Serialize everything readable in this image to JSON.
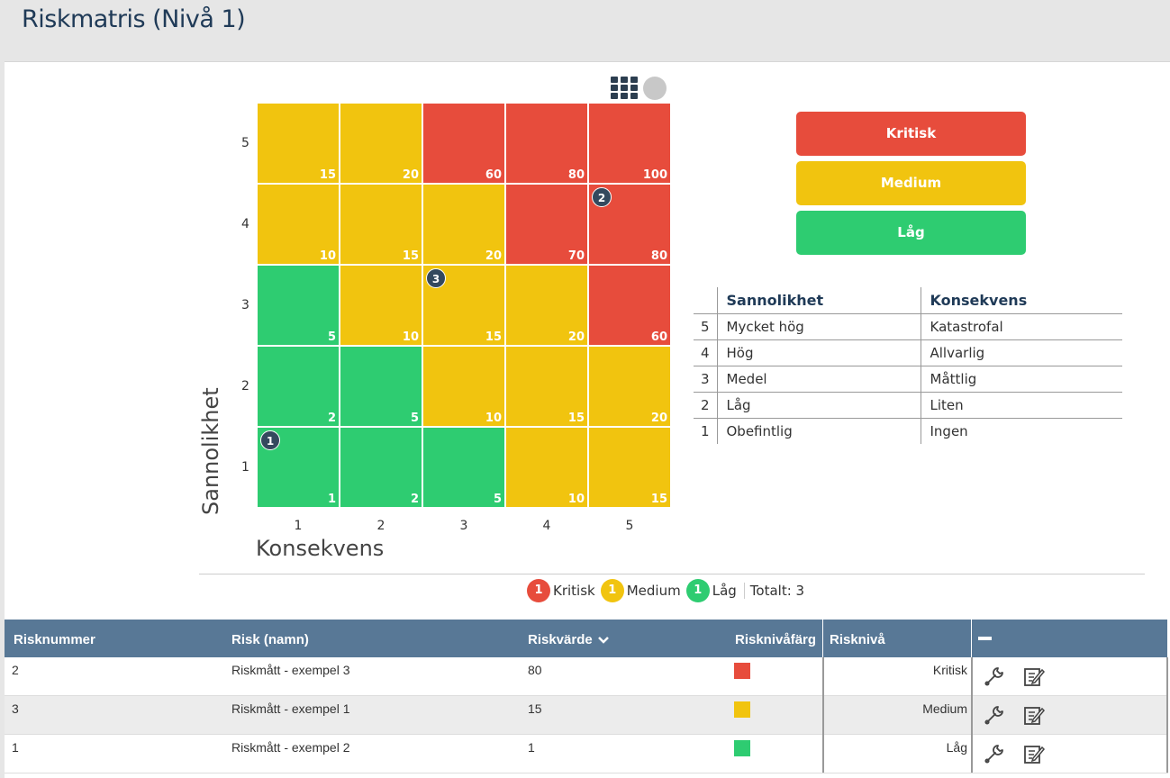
{
  "page": {
    "title": "Riskmatris (Nivå 1)"
  },
  "matrix": {
    "y_axis_label": "Sannolikhet",
    "x_axis_label": "Konsekvens",
    "y_ticks": [
      "5",
      "4",
      "3",
      "2",
      "1"
    ],
    "x_ticks": [
      "1",
      "2",
      "3",
      "4",
      "5"
    ],
    "rows": [
      {
        "level": "5",
        "cells": [
          {
            "value": "15",
            "color": "yellow"
          },
          {
            "value": "20",
            "color": "yellow"
          },
          {
            "value": "60",
            "color": "red"
          },
          {
            "value": "80",
            "color": "red"
          },
          {
            "value": "100",
            "color": "red"
          }
        ]
      },
      {
        "level": "4",
        "cells": [
          {
            "value": "10",
            "color": "yellow"
          },
          {
            "value": "15",
            "color": "yellow"
          },
          {
            "value": "20",
            "color": "yellow"
          },
          {
            "value": "70",
            "color": "red"
          },
          {
            "value": "80",
            "color": "red"
          }
        ]
      },
      {
        "level": "3",
        "cells": [
          {
            "value": "5",
            "color": "green"
          },
          {
            "value": "10",
            "color": "yellow"
          },
          {
            "value": "15",
            "color": "yellow"
          },
          {
            "value": "20",
            "color": "yellow"
          },
          {
            "value": "60",
            "color": "red"
          }
        ]
      },
      {
        "level": "2",
        "cells": [
          {
            "value": "2",
            "color": "green"
          },
          {
            "value": "5",
            "color": "green"
          },
          {
            "value": "10",
            "color": "yellow"
          },
          {
            "value": "15",
            "color": "yellow"
          },
          {
            "value": "20",
            "color": "yellow"
          }
        ]
      },
      {
        "level": "1",
        "cells": [
          {
            "value": "1",
            "color": "green"
          },
          {
            "value": "2",
            "color": "green"
          },
          {
            "value": "5",
            "color": "green"
          },
          {
            "value": "10",
            "color": "yellow"
          },
          {
            "value": "15",
            "color": "yellow"
          }
        ]
      }
    ],
    "markers": [
      {
        "label": "2",
        "row": 4,
        "col": 5
      },
      {
        "label": "3",
        "row": 3,
        "col": 3
      },
      {
        "label": "1",
        "row": 1,
        "col": 1
      }
    ],
    "icons": {
      "grid": "grid-view-icon",
      "circle": "circle-view-icon"
    }
  },
  "levels": [
    {
      "label": "Kritisk",
      "color": "#e74c3c"
    },
    {
      "label": "Medium",
      "color": "#f1c40f"
    },
    {
      "label": "Låg",
      "color": "#2ecc71"
    }
  ],
  "scale_table": {
    "headers": [
      "",
      "Sannolikhet",
      "Konsekvens"
    ],
    "rows": [
      {
        "n": "5",
        "s": "Mycket hög",
        "k": "Katastrofal"
      },
      {
        "n": "4",
        "s": "Hög",
        "k": "Allvarlig"
      },
      {
        "n": "3",
        "s": "Medel",
        "k": "Måttlig"
      },
      {
        "n": "2",
        "s": "Låg",
        "k": "Liten"
      },
      {
        "n": "1",
        "s": "Obefintlig",
        "k": "Ingen"
      }
    ]
  },
  "summary": {
    "items": [
      {
        "count": "1",
        "label": "Kritisk",
        "color": "#e74c3c"
      },
      {
        "count": "1",
        "label": "Medium",
        "color": "#f1c40f"
      },
      {
        "count": "1",
        "label": "Låg",
        "color": "#2ecc71"
      }
    ],
    "total": "Totalt: 3"
  },
  "risk_table": {
    "headers": {
      "nummer": "Risknummer",
      "namn": "Risk (namn)",
      "varde": "Riskvärde",
      "farg": "Risknivåfärg",
      "niva": "Risknivå"
    },
    "sort_icon": "chevron-down-icon",
    "rows": [
      {
        "nummer": "2",
        "namn": "Riskmått - exempel 3",
        "varde": "80",
        "color": "#e74c3c",
        "niva": "Kritisk"
      },
      {
        "nummer": "3",
        "namn": "Riskmått - exempel 1",
        "varde": "15",
        "color": "#f1c40f",
        "niva": "Medium"
      },
      {
        "nummer": "1",
        "namn": "Riskmått - exempel 2",
        "varde": "1",
        "color": "#2ecc71",
        "niva": "Låg"
      }
    ],
    "row_actions": [
      "wrench-icon",
      "edit-icon"
    ]
  }
}
